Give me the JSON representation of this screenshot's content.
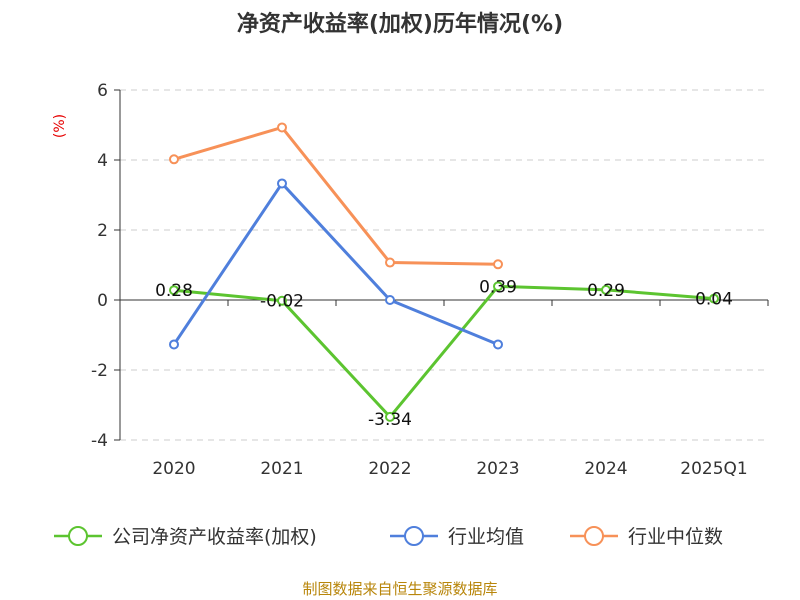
{
  "title": "净资产收益率(加权)历年情况(%)",
  "footer": "制图数据来自恒生聚源数据库",
  "chart_data": {
    "type": "line",
    "ylabel": "(%)",
    "ylim": [
      -4,
      6
    ],
    "yticks": [
      -4,
      -2,
      0,
      2,
      4,
      6
    ],
    "categories": [
      "2020",
      "2021",
      "2022",
      "2023",
      "2024",
      "2025Q1"
    ],
    "grid": true,
    "legend_position": "bottom",
    "series": [
      {
        "name": "公司净资产收益率(加权)",
        "color": "#5cc430",
        "values": [
          0.28,
          -0.02,
          -3.34,
          0.39,
          0.29,
          0.04
        ],
        "labels": [
          "0.28",
          "-0.02",
          "-3.34",
          "0.39",
          "0.29",
          "0.04"
        ]
      },
      {
        "name": "行业均值",
        "color": "#4f7fdc",
        "values": [
          -1.27,
          3.33,
          0.0,
          -1.27,
          null,
          null
        ]
      },
      {
        "name": "行业中位数",
        "color": "#f79158",
        "values": [
          4.02,
          4.93,
          1.07,
          1.02,
          null,
          null
        ]
      }
    ]
  }
}
